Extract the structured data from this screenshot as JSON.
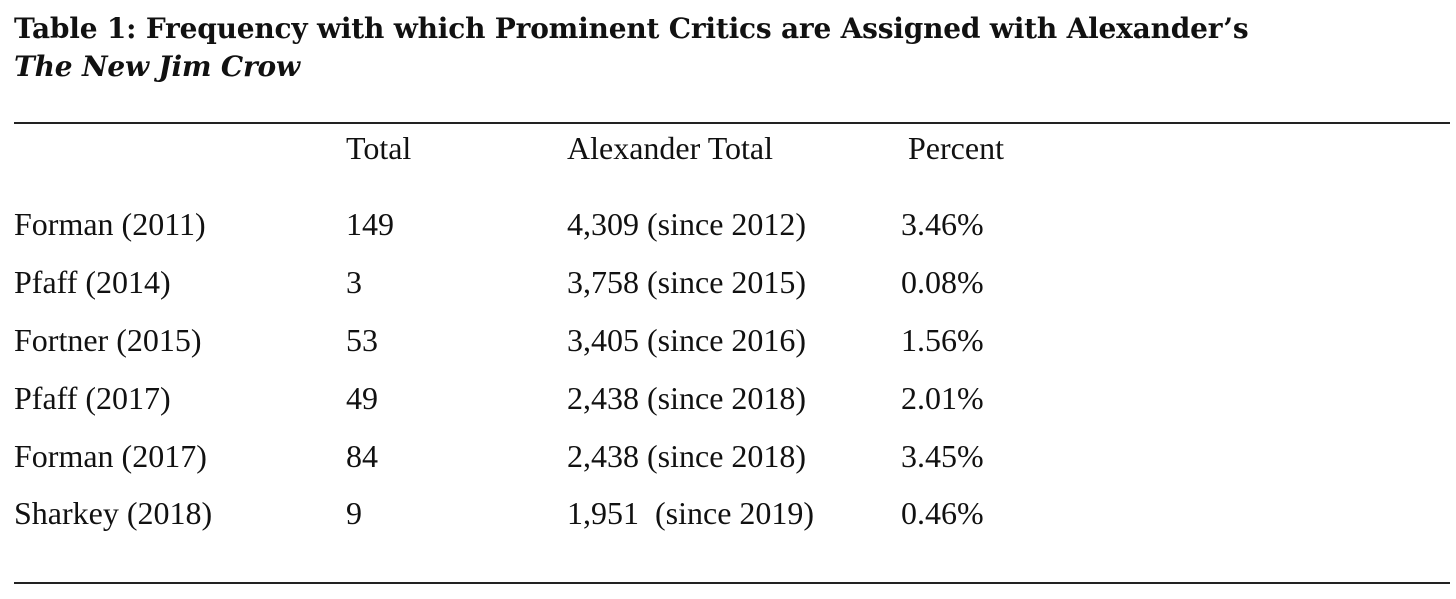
{
  "table": {
    "title_line1": "Table 1: Frequency with which Prominent Critics are Assigned with Alexander’s",
    "title_line2": "The New Jim Crow",
    "headers": {
      "name": "",
      "total": "Total",
      "alexander_total": "Alexander Total",
      "percent": "Percent"
    },
    "rows": [
      {
        "name": "Forman (2011)",
        "total": "149",
        "alexander_total": "4,309 (since 2012)",
        "percent": "3.46%"
      },
      {
        "name": "Pfaff (2014)",
        "total": "3",
        "alexander_total": "3,758 (since 2015)",
        "percent": "0.08%"
      },
      {
        "name": "Fortner (2015)",
        "total": "53",
        "alexander_total": "3,405 (since 2016)",
        "percent": "1.56%"
      },
      {
        "name": "Pfaff (2017)",
        "total": "49",
        "alexander_total": "2,438 (since 2018)",
        "percent": "2.01%"
      },
      {
        "name": "Forman (2017)",
        "total": "84",
        "alexander_total": "2,438 (since 2018)",
        "percent": "3.45%"
      },
      {
        "name": "Sharkey (2018)",
        "total": "9",
        "alexander_total": "1,951  (since 2019)",
        "percent": "0.46%"
      }
    ]
  }
}
